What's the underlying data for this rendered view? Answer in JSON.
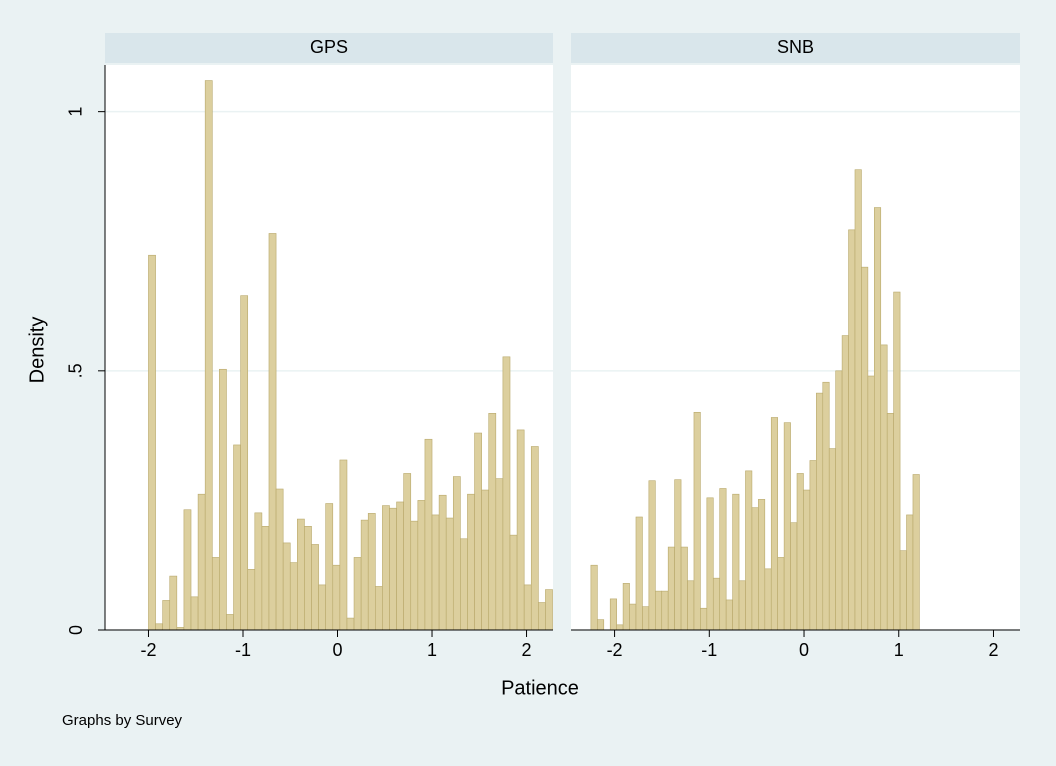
{
  "y_label": "Density",
  "x_label": "Patience",
  "note": "Graphs by Survey",
  "chart_data": [
    {
      "type": "histogram",
      "title": "GPS",
      "color": "#dccf9e",
      "edge_color": "#b8a86a",
      "bins": [
        -2,
        -1.925,
        -1.85,
        -1.775,
        -1.7,
        -1.625,
        -1.55,
        -1.475,
        -1.4,
        -1.325,
        -1.25,
        -1.175,
        -1.1,
        -1.025,
        -0.95,
        -0.875,
        -0.8,
        -0.725,
        -0.65,
        -0.575,
        -0.5,
        -0.425,
        -0.35,
        -0.275,
        -0.2,
        -0.125,
        -0.05,
        0.025,
        0.1,
        0.175,
        0.25,
        0.325,
        0.4,
        0.475,
        0.55,
        0.625,
        0.7,
        0.775,
        0.85,
        0.925,
        1,
        1.075,
        1.15,
        1.225,
        1.3,
        1.375,
        1.45,
        1.525,
        1.6,
        1.675,
        1.75,
        1.825,
        1.9,
        1.975,
        2.05,
        2.125,
        2.2,
        2.275
      ],
      "values": [
        0.723,
        0.012,
        0.057,
        0.104,
        0.005,
        0.232,
        0.064,
        0.262,
        1.06,
        0.14,
        0.503,
        0.03,
        0.357,
        0.645,
        0.117,
        0.226,
        0.2,
        0.765,
        0.272,
        0.168,
        0.13,
        0.214,
        0.2,
        0.165,
        0.087,
        0.244,
        0.125,
        0.328,
        0.023,
        0.14,
        0.212,
        0.225,
        0.084,
        0.24,
        0.235,
        0.247,
        0.302,
        0.21,
        0.25,
        0.368,
        0.222,
        0.26,
        0.216,
        0.296,
        0.176,
        0.262,
        0.38,
        0.27,
        0.418,
        0.292,
        0.527,
        0.183,
        0.386,
        0.087,
        0.354,
        0.053,
        0.078
      ],
      "xlim": [
        -2.46,
        2.28
      ],
      "xticks": [
        -2,
        -1,
        0,
        1,
        2
      ],
      "ylim": [
        0,
        1.09
      ],
      "yticks": [
        0,
        {
          "value": 0.5,
          "label": ".5"
        },
        1
      ],
      "grid": true
    },
    {
      "type": "histogram",
      "title": "SNB",
      "color": "#dccf9e",
      "edge_color": "#b8a86a",
      "bins": [
        -2.25,
        -2.182,
        -2.114,
        -2.046,
        -1.978,
        -1.91,
        -1.842,
        -1.774,
        -1.706,
        -1.638,
        -1.57,
        -1.502,
        -1.434,
        -1.366,
        -1.298,
        -1.23,
        -1.162,
        -1.094,
        -1.026,
        -0.958,
        -0.89,
        -0.822,
        -0.754,
        -0.686,
        -0.618,
        -0.55,
        -0.482,
        -0.414,
        -0.346,
        -0.278,
        -0.21,
        -0.142,
        -0.074,
        -0.006,
        0.062,
        0.13,
        0.198,
        0.266,
        0.334,
        0.402,
        0.47,
        0.538,
        0.606,
        0.674,
        0.742,
        0.81,
        0.878,
        0.946,
        1.014,
        1.082,
        1.15,
        1.218
      ],
      "values": [
        0.125,
        0.02,
        0,
        0.06,
        0.01,
        0.09,
        0.05,
        0.218,
        0.045,
        0.288,
        0.075,
        0.075,
        0.16,
        0.29,
        0.16,
        0.095,
        0.42,
        0.042,
        0.255,
        0.1,
        0.273,
        0.058,
        0.262,
        0.095,
        0.307,
        0.236,
        0.252,
        0.118,
        0.41,
        0.14,
        0.4,
        0.207,
        0.302,
        0.27,
        0.327,
        0.457,
        0.478,
        0.35,
        0.5,
        0.568,
        0.772,
        0.888,
        0.7,
        0.49,
        0.815,
        0.55,
        0.418,
        0.652,
        0.153,
        0.222,
        0.3
      ],
      "xlim": [
        -2.46,
        2.28
      ],
      "xticks": [
        -2,
        -1,
        0,
        1,
        2
      ],
      "ylim": [
        0,
        1.09
      ],
      "yticks": [
        0,
        {
          "value": 0.5,
          "label": ".5"
        },
        1
      ],
      "grid": true
    }
  ]
}
